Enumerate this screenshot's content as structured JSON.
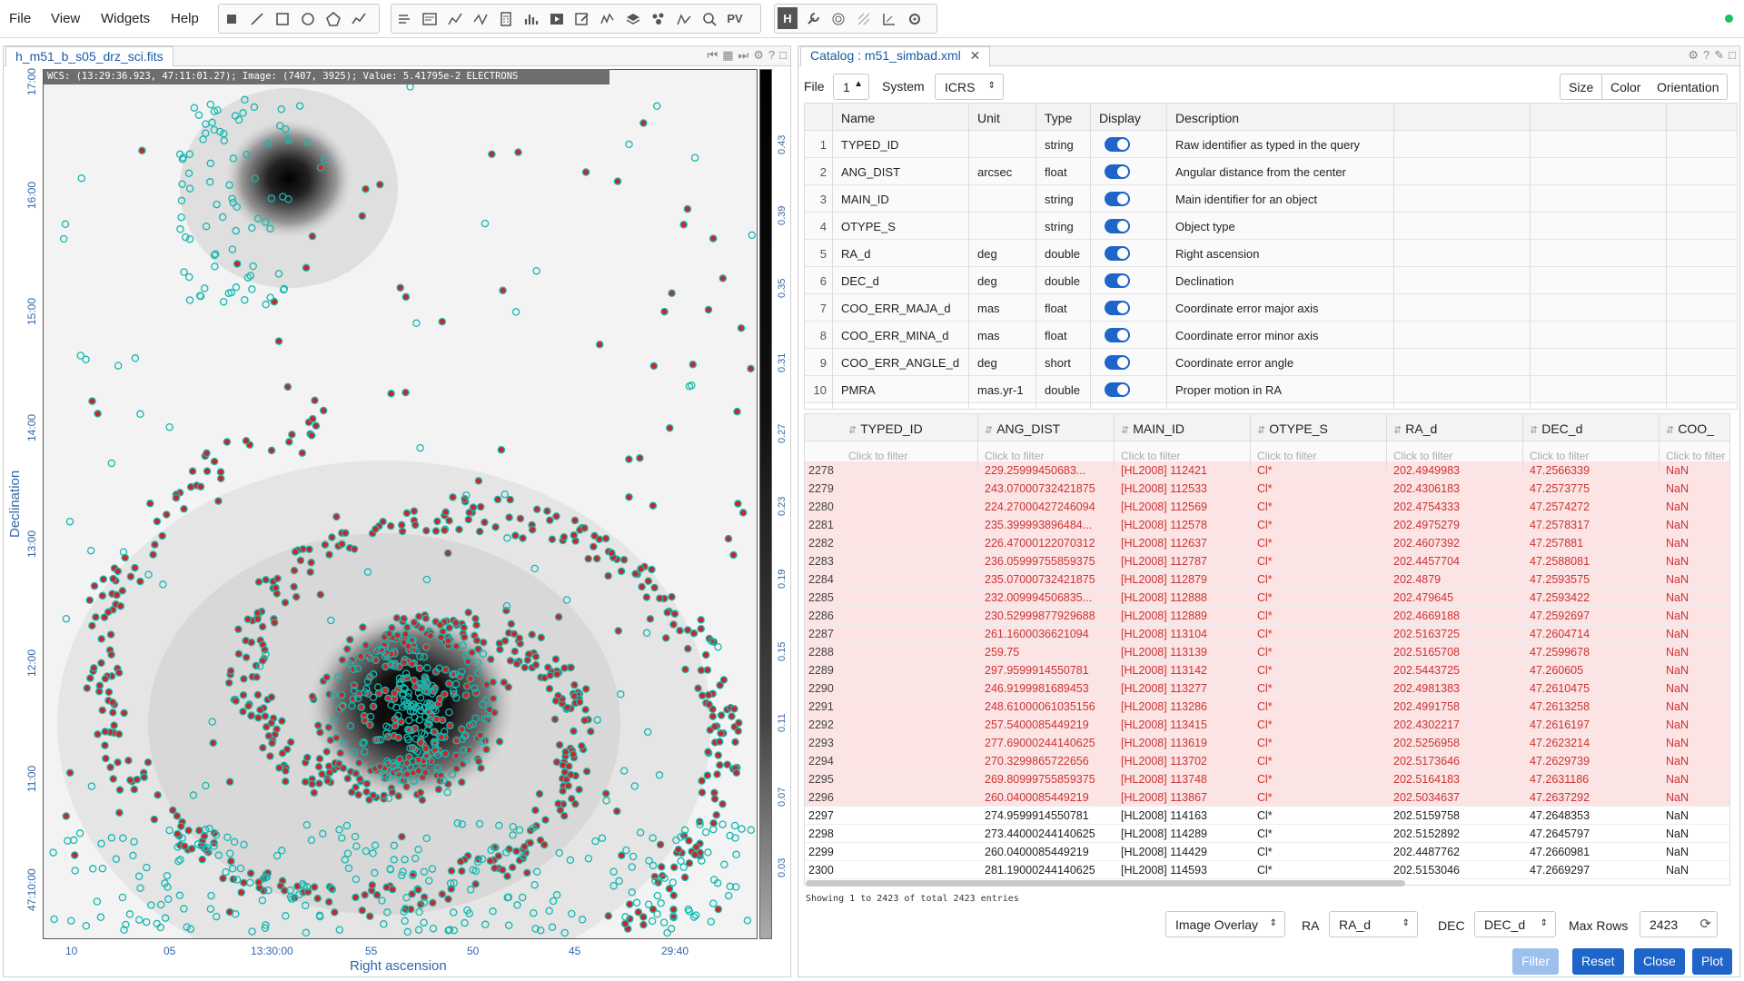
{
  "menu": {
    "file": "File",
    "view": "View",
    "widgets": "Widgets",
    "help": "Help"
  },
  "toolbar": {
    "pv_label": "PV",
    "h_label": "H"
  },
  "left": {
    "tab_title": "h_m51_b_s05_drz_sci.fits",
    "wcs_readout": "WCS: (13:29:36.923, 47:11:01.27); Image: (7407, 3925); Value:  5.41795e-2 ELECTRONS",
    "colorbar_ticks": [
      "0.43",
      "0.39",
      "0.35",
      "0.31",
      "0.27",
      "0.23",
      "0.19",
      "0.15",
      "0.11",
      "0.07",
      "0.03"
    ],
    "y_ticks": [
      "17:00",
      "16:00",
      "15:00",
      "14:00",
      "13:00",
      "12:00",
      "11:00",
      "47:10:00"
    ],
    "x_ticks": [
      "10",
      "05",
      "13:30:00",
      "55",
      "50",
      "45",
      "29:40"
    ],
    "x_label": "Right ascension",
    "y_label": "Declination"
  },
  "right": {
    "tab_title": "Catalog : m51_simbad.xml",
    "file_label": "File",
    "file_value": "1",
    "system_label": "System",
    "system_value": "ICRS",
    "size_btn": "Size",
    "color_btn": "Color",
    "orientation_btn": "Orientation",
    "col_headers": {
      "name": "Name",
      "unit": "Unit",
      "type": "Type",
      "display": "Display",
      "description": "Description"
    },
    "columns": [
      {
        "idx": "1",
        "name": "TYPED_ID",
        "unit": "",
        "type": "string",
        "desc": "Raw identifier as typed in the query"
      },
      {
        "idx": "2",
        "name": "ANG_DIST",
        "unit": "arcsec",
        "type": "float",
        "desc": "Angular distance from the center"
      },
      {
        "idx": "3",
        "name": "MAIN_ID",
        "unit": "",
        "type": "string",
        "desc": "Main identifier for an object"
      },
      {
        "idx": "4",
        "name": "OTYPE_S",
        "unit": "",
        "type": "string",
        "desc": "Object type"
      },
      {
        "idx": "5",
        "name": "RA_d",
        "unit": "deg",
        "type": "double",
        "desc": "Right ascension"
      },
      {
        "idx": "6",
        "name": "DEC_d",
        "unit": "deg",
        "type": "double",
        "desc": "Declination"
      },
      {
        "idx": "7",
        "name": "COO_ERR_MAJA_d",
        "unit": "mas",
        "type": "float",
        "desc": "Coordinate error major axis"
      },
      {
        "idx": "8",
        "name": "COO_ERR_MINA_d",
        "unit": "mas",
        "type": "float",
        "desc": "Coordinate error minor axis"
      },
      {
        "idx": "9",
        "name": "COO_ERR_ANGLE_d",
        "unit": "deg",
        "type": "short",
        "desc": "Coordinate error angle"
      },
      {
        "idx": "10",
        "name": "PMRA",
        "unit": "mas.yr-1",
        "type": "double",
        "desc": "Proper motion in RA"
      }
    ],
    "data_headers": [
      "TYPED_ID",
      "ANG_DIST",
      "MAIN_ID",
      "OTYPE_S",
      "RA_d",
      "DEC_d",
      "COO_"
    ],
    "filter_placeholder": "Click to filter",
    "rows": [
      {
        "i": "2278",
        "ang": "229.25999450683...",
        "main": "[HL2008] 112421",
        "ot": "Cl*",
        "ra": "202.4949983",
        "dec": "47.2566339",
        "e": "NaN",
        "hl": true
      },
      {
        "i": "2279",
        "ang": "243.07000732421875",
        "main": "[HL2008] 112533",
        "ot": "Cl*",
        "ra": "202.4306183",
        "dec": "47.2573775",
        "e": "NaN",
        "hl": true
      },
      {
        "i": "2280",
        "ang": "224.27000427246094",
        "main": "[HL2008] 112569",
        "ot": "Cl*",
        "ra": "202.4754333",
        "dec": "47.2574272",
        "e": "NaN",
        "hl": true
      },
      {
        "i": "2281",
        "ang": "235.399993896484...",
        "main": "[HL2008] 112578",
        "ot": "Cl*",
        "ra": "202.4975279",
        "dec": "47.2578317",
        "e": "NaN",
        "hl": true
      },
      {
        "i": "2282",
        "ang": "226.47000122070312",
        "main": "[HL2008] 112637",
        "ot": "Cl*",
        "ra": "202.4607392",
        "dec": "47.257881",
        "e": "NaN",
        "hl": true
      },
      {
        "i": "2283",
        "ang": "236.05999755859375",
        "main": "[HL2008] 112787",
        "ot": "Cl*",
        "ra": "202.4457704",
        "dec": "47.2588081",
        "e": "NaN",
        "hl": true
      },
      {
        "i": "2284",
        "ang": "235.07000732421875",
        "main": "[HL2008] 112879",
        "ot": "Cl*",
        "ra": "202.4879",
        "dec": "47.2593575",
        "e": "NaN",
        "hl": true
      },
      {
        "i": "2285",
        "ang": "232.009994506835...",
        "main": "[HL2008] 112888",
        "ot": "Cl*",
        "ra": "202.479645",
        "dec": "47.2593422",
        "e": "NaN",
        "hl": true
      },
      {
        "i": "2286",
        "ang": "230.52999877929688",
        "main": "[HL2008] 112889",
        "ot": "Cl*",
        "ra": "202.4669188",
        "dec": "47.2592697",
        "e": "NaN",
        "hl": true
      },
      {
        "i": "2287",
        "ang": "261.1600036621094",
        "main": "[HL2008] 113104",
        "ot": "Cl*",
        "ra": "202.5163725",
        "dec": "47.2604714",
        "e": "NaN",
        "hl": true
      },
      {
        "i": "2288",
        "ang": "259.75",
        "main": "[HL2008] 113139",
        "ot": "Cl*",
        "ra": "202.5165708",
        "dec": "47.2599678",
        "e": "NaN",
        "hl": true
      },
      {
        "i": "2289",
        "ang": "297.9599914550781",
        "main": "[HL2008] 113142",
        "ot": "Cl*",
        "ra": "202.5443725",
        "dec": "47.260605",
        "e": "NaN",
        "hl": true
      },
      {
        "i": "2290",
        "ang": "246.9199981689453",
        "main": "[HL2008] 113277",
        "ot": "Cl*",
        "ra": "202.4981383",
        "dec": "47.2610475",
        "e": "NaN",
        "hl": true
      },
      {
        "i": "2291",
        "ang": "248.61000061035156",
        "main": "[HL2008] 113286",
        "ot": "Cl*",
        "ra": "202.4991758",
        "dec": "47.2613258",
        "e": "NaN",
        "hl": true
      },
      {
        "i": "2292",
        "ang": "257.5400085449219",
        "main": "[HL2008] 113415",
        "ot": "Cl*",
        "ra": "202.4302217",
        "dec": "47.2616197",
        "e": "NaN",
        "hl": true
      },
      {
        "i": "2293",
        "ang": "277.69000244140625",
        "main": "[HL2008] 113619",
        "ot": "Cl*",
        "ra": "202.5256958",
        "dec": "47.2623214",
        "e": "NaN",
        "hl": true
      },
      {
        "i": "2294",
        "ang": "270.3299865722656",
        "main": "[HL2008] 113702",
        "ot": "Cl*",
        "ra": "202.5173646",
        "dec": "47.2629739",
        "e": "NaN",
        "hl": true
      },
      {
        "i": "2295",
        "ang": "269.80999755859375",
        "main": "[HL2008] 113748",
        "ot": "Cl*",
        "ra": "202.5164183",
        "dec": "47.2631186",
        "e": "NaN",
        "hl": true
      },
      {
        "i": "2296",
        "ang": "260.0400085449219",
        "main": "[HL2008] 113867",
        "ot": "Cl*",
        "ra": "202.5034637",
        "dec": "47.2637292",
        "e": "NaN",
        "hl": true
      },
      {
        "i": "2297",
        "ang": "274.9599914550781",
        "main": "[HL2008] 114163",
        "ot": "Cl*",
        "ra": "202.5159758",
        "dec": "47.2648353",
        "e": "NaN",
        "hl": false
      },
      {
        "i": "2298",
        "ang": "273.44000244140625",
        "main": "[HL2008] 114289",
        "ot": "Cl*",
        "ra": "202.5152892",
        "dec": "47.2645797",
        "e": "NaN",
        "hl": false
      },
      {
        "i": "2299",
        "ang": "260.0400085449219",
        "main": "[HL2008] 114429",
        "ot": "Cl*",
        "ra": "202.4487762",
        "dec": "47.2660981",
        "e": "NaN",
        "hl": false
      },
      {
        "i": "2300",
        "ang": "281.19000244140625",
        "main": "[HL2008] 114593",
        "ot": "Cl*",
        "ra": "202.5153046",
        "dec": "47.2669297",
        "e": "NaN",
        "hl": false
      }
    ],
    "entries_text": "Showing 1 to 2423 of total 2423 entries",
    "overlay_select": "Image Overlay",
    "ra_label": "RA",
    "ra_select": "RA_d",
    "dec_label": "DEC",
    "dec_select": "DEC_d",
    "maxrows_label": "Max Rows",
    "maxrows_value": "2423",
    "filter_btn": "Filter",
    "reset_btn": "Reset",
    "close_btn": "Close",
    "plot_btn": "Plot"
  },
  "colors": {
    "accent": "#1f64c8",
    "highlight_row": "#fce4e4",
    "highlight_text": "#cc3333",
    "marker_red": "#c62828",
    "marker_cyan": "#16b8b0"
  }
}
